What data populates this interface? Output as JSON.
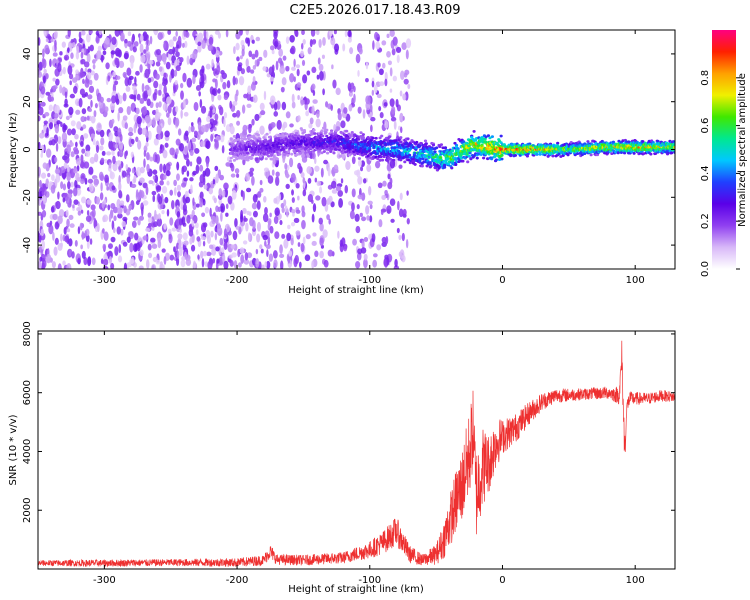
{
  "title": "C2E5.2026.017.18.43.R09",
  "chart_data": [
    {
      "type": "heatmap",
      "name": "spectrogram",
      "xlabel": "Height of straight line (km)",
      "ylabel": "Frequency (Hz)",
      "xlim": [
        -350,
        130
      ],
      "ylim": [
        -50,
        50
      ],
      "xticks": [
        -300,
        -200,
        -100,
        0,
        100
      ],
      "yticks": [
        -40,
        -20,
        0,
        20,
        40
      ],
      "colorbar": {
        "label": "Normalized spectral amplitude",
        "range": [
          0,
          1
        ],
        "ticks": [
          0.0,
          0.2,
          0.4,
          0.6,
          0.8
        ],
        "tick_labels": [
          "0.0",
          "0.2",
          "0.4",
          "0.6",
          "0.8"
        ],
        "colormap": [
          "#ffffff",
          "#d8b8f8",
          "#9040f0",
          "#5a00e8",
          "#2040ff",
          "#00c8ff",
          "#00e890",
          "#40e800",
          "#f0f000",
          "#ffa000",
          "#ff2000",
          "#ff0080"
        ]
      },
      "ridge": {
        "description": "narrowband signal ridge near 0 Hz",
        "x": [
          -205,
          -180,
          -150,
          -120,
          -100,
          -80,
          -60,
          -45,
          -38,
          -30,
          -20,
          -10,
          0,
          20,
          50,
          80,
          100,
          130
        ],
        "y": [
          0,
          1,
          3,
          3,
          1,
          0,
          -2,
          -4,
          -3,
          0,
          2,
          1,
          0,
          0,
          0,
          1,
          1,
          1
        ],
        "amplitude": [
          0.22,
          0.28,
          0.3,
          0.35,
          0.45,
          0.5,
          0.55,
          0.65,
          0.7,
          0.75,
          0.8,
          0.85,
          0.9,
          0.88,
          0.7,
          0.8,
          0.85,
          0.75
        ]
      },
      "noise_region": {
        "x_from": -350,
        "x_to": -70,
        "amplitude": 0.15
      }
    },
    {
      "type": "line",
      "name": "snr",
      "xlabel": "Height of straight line (km)",
      "ylabel": "SNR (10 * v/v)",
      "xlim": [
        -350,
        130
      ],
      "ylim": [
        0,
        8100
      ],
      "xticks": [
        -300,
        -200,
        -100,
        0,
        100
      ],
      "yticks": [
        2000,
        4000,
        6000,
        8000
      ],
      "color": "#ee3030",
      "series": [
        {
          "name": "SNR",
          "x": [
            -350,
            -300,
            -250,
            -200,
            -180,
            -175,
            -170,
            -150,
            -120,
            -100,
            -90,
            -80,
            -75,
            -70,
            -60,
            -50,
            -45,
            -40,
            -35,
            -30,
            -25,
            -22,
            -20,
            -15,
            -10,
            -5,
            0,
            10,
            20,
            30,
            40,
            60,
            80,
            88,
            90,
            92,
            94,
            96,
            100,
            110,
            120,
            130
          ],
          "y": [
            200,
            200,
            220,
            220,
            300,
            600,
            320,
            300,
            380,
            650,
            900,
            1300,
            900,
            500,
            300,
            500,
            900,
            1600,
            2300,
            2900,
            3900,
            4800,
            2500,
            3500,
            3600,
            4300,
            4500,
            4800,
            5300,
            5700,
            5900,
            5950,
            6000,
            5900,
            7200,
            4000,
            5600,
            5800,
            5800,
            5800,
            5900,
            5850
          ],
          "spread": [
            100,
            120,
            120,
            150,
            180,
            250,
            180,
            180,
            200,
            300,
            400,
            500,
            400,
            300,
            200,
            350,
            600,
            900,
            1100,
            1300,
            1500,
            1400,
            1600,
            1400,
            1000,
            900,
            600,
            500,
            400,
            300,
            250,
            200,
            220,
            300,
            700,
            600,
            250,
            250,
            220,
            200,
            200,
            180
          ]
        }
      ]
    }
  ]
}
